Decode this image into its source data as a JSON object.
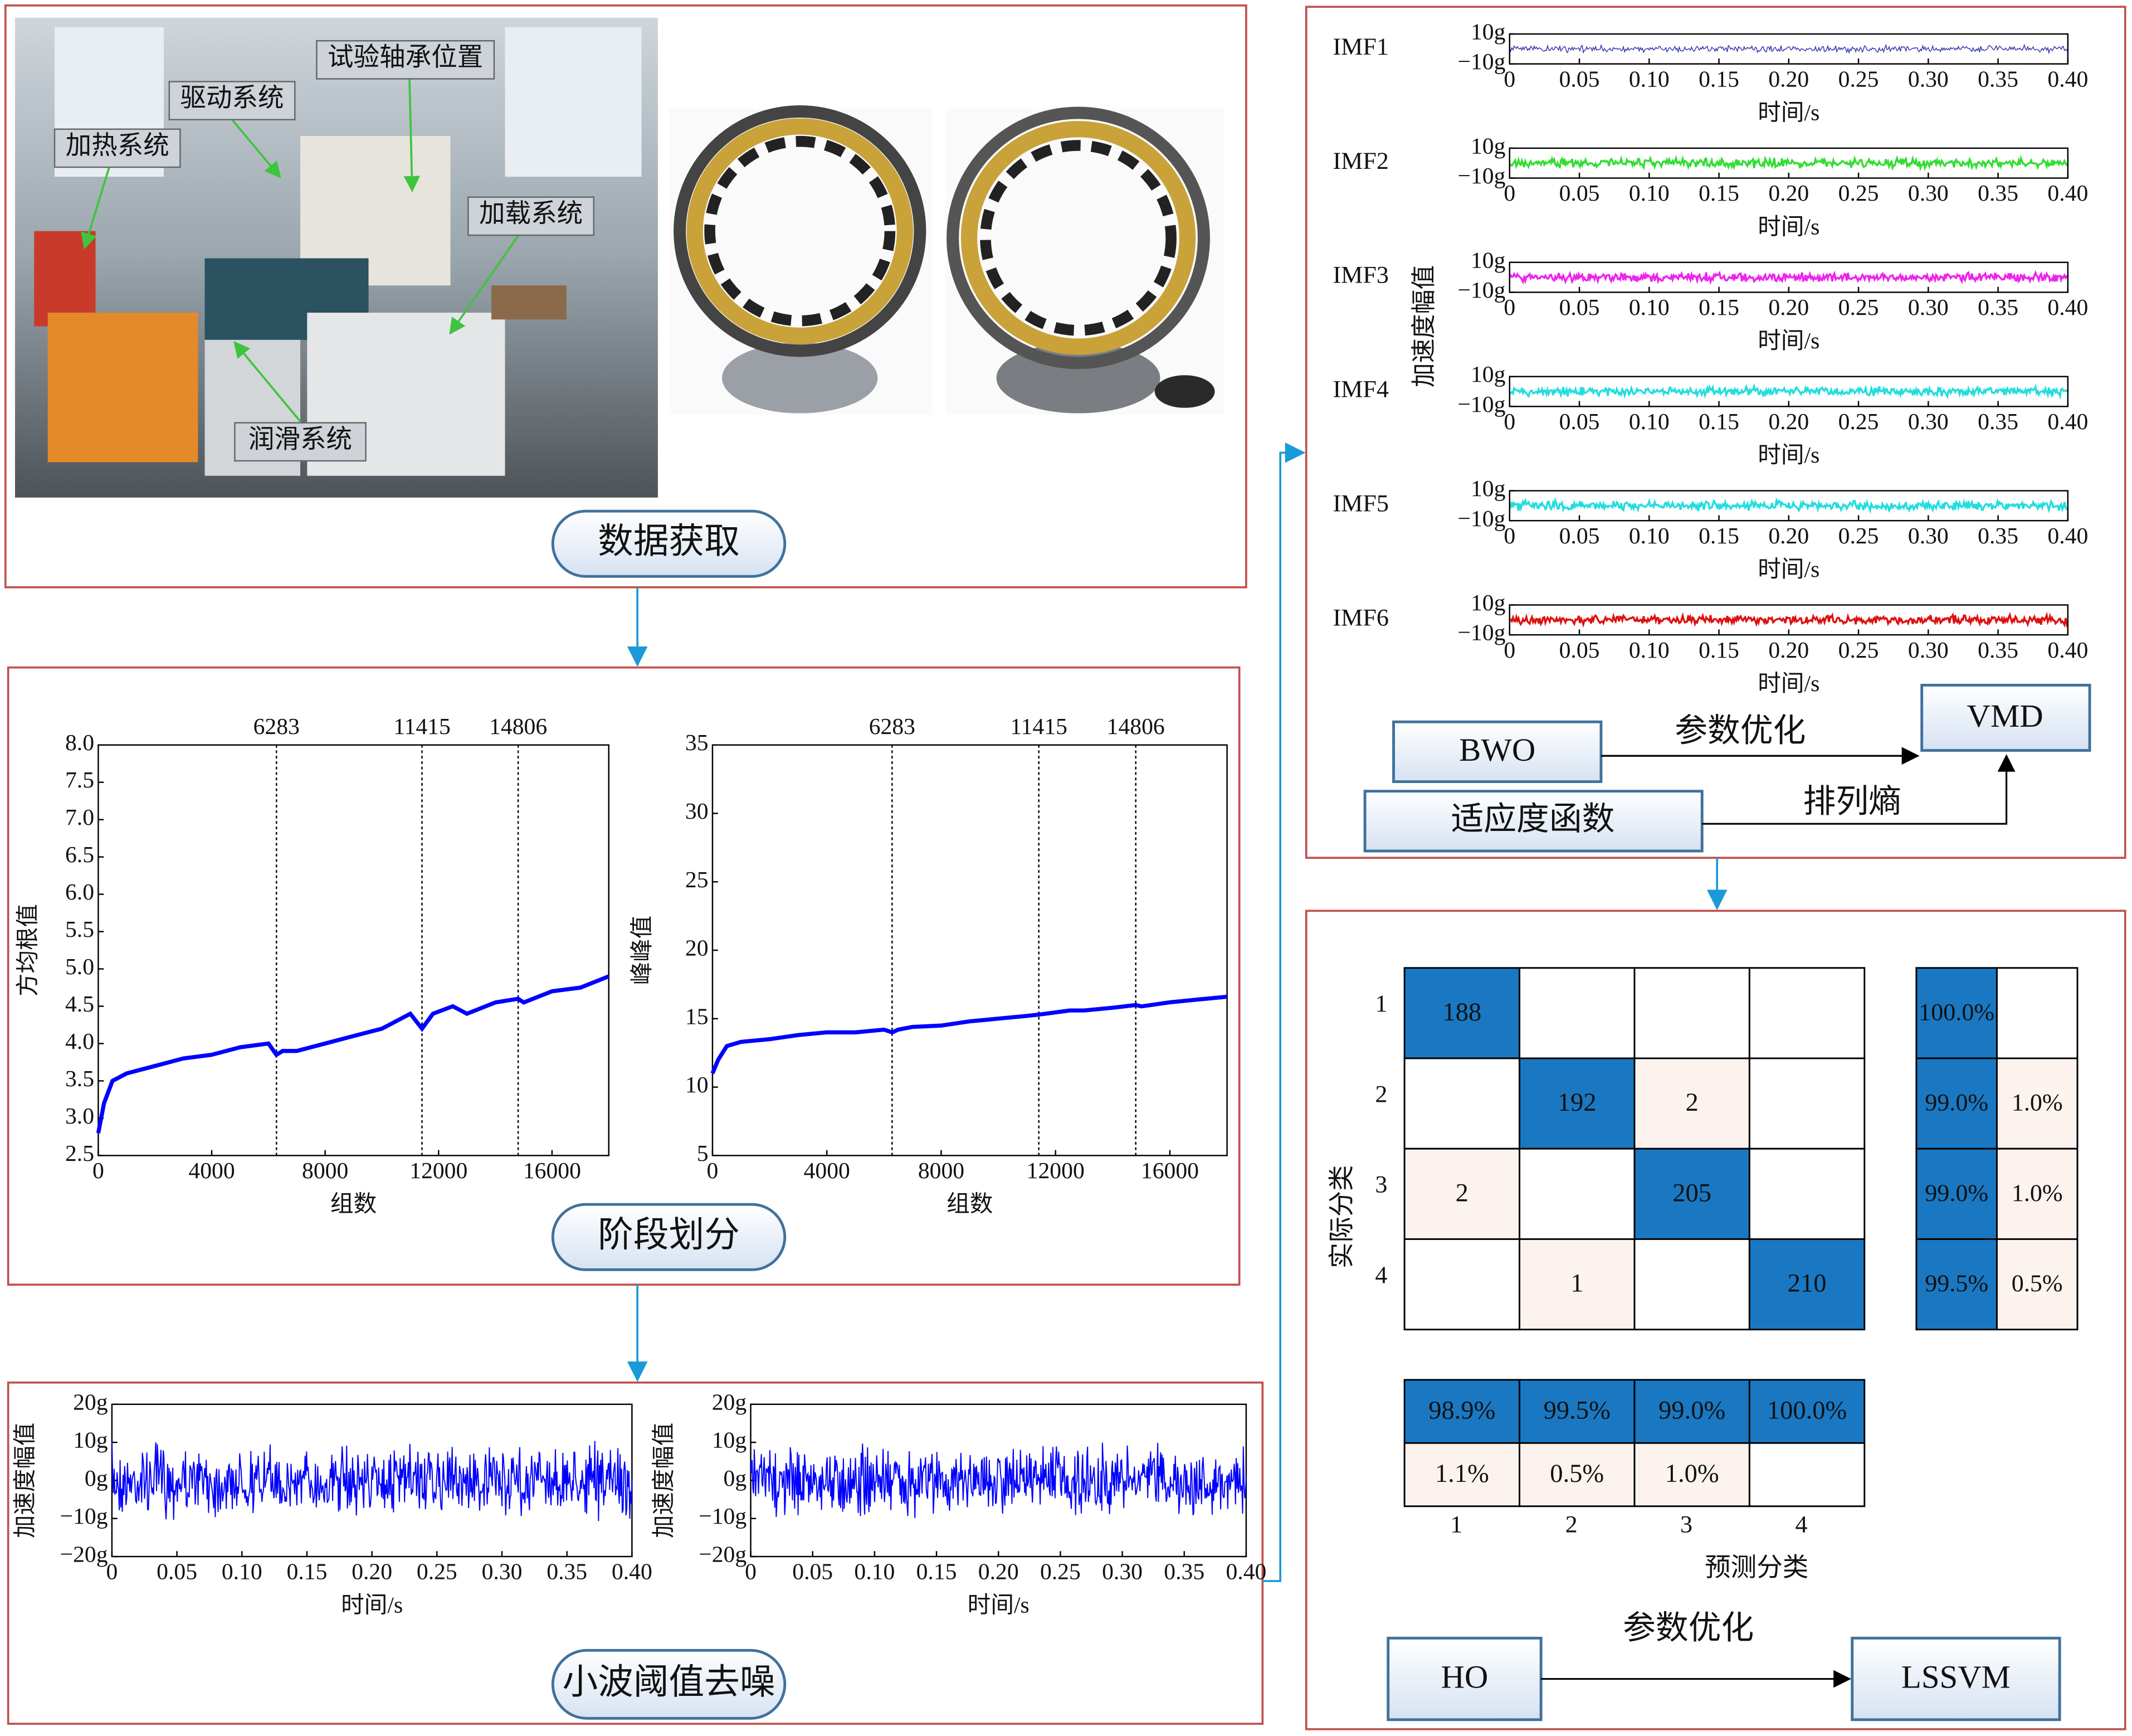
{
  "acquisition": {
    "labels": [
      "试验轴承位置",
      "驱动系统",
      "加热系统",
      "加载系统",
      "润滑系统"
    ],
    "caption": "数据获取"
  },
  "stage": {
    "caption": "阶段划分",
    "charts": [
      {
        "type": "line",
        "xlabel": "组数",
        "ylabel": "方均根值",
        "color": "#0000ff",
        "xlim": [
          0,
          18000
        ],
        "xticks": [
          0,
          4000,
          8000,
          12000,
          16000
        ],
        "ylim": [
          2.5,
          8.0
        ],
        "yticks": [
          2.5,
          {
            "value": 3.0,
            "label": "3.0"
          },
          3.5,
          {
            "value": 4.0,
            "label": "4.0"
          },
          4.5,
          {
            "value": 5.0,
            "label": "5.0"
          },
          5.5,
          {
            "value": 6.0,
            "label": "6.0"
          },
          6.5,
          {
            "value": 7.0,
            "label": "7.0"
          },
          7.5,
          {
            "value": 8.0,
            "label": "8.0"
          }
        ],
        "markers": [
          6283,
          11415,
          14806
        ],
        "x": [
          0,
          200,
          500,
          1000,
          2000,
          3000,
          4000,
          5000,
          6000,
          6283,
          6500,
          7000,
          8000,
          9000,
          10000,
          11000,
          11415,
          11800,
          12500,
          13000,
          14000,
          14806,
          15000,
          16000,
          17000,
          18000
        ],
        "values": [
          2.8,
          3.2,
          3.5,
          3.6,
          3.7,
          3.8,
          3.85,
          3.95,
          4.0,
          3.85,
          3.9,
          3.9,
          4.0,
          4.1,
          4.2,
          4.4,
          4.2,
          4.4,
          4.5,
          4.4,
          4.55,
          4.6,
          4.55,
          4.7,
          4.75,
          4.9
        ]
      },
      {
        "type": "line",
        "xlabel": "组数",
        "ylabel": "峰峰值",
        "color": "#0000ff",
        "xlim": [
          0,
          18000
        ],
        "xticks": [
          0,
          4000,
          8000,
          12000,
          16000
        ],
        "ylim": [
          5,
          35
        ],
        "yticks": [
          5,
          10,
          15,
          20,
          25,
          30,
          35
        ],
        "markers": [
          6283,
          11415,
          14806
        ],
        "x": [
          0,
          200,
          500,
          1000,
          2000,
          3000,
          4000,
          5000,
          6000,
          6283,
          6500,
          7000,
          8000,
          9000,
          10000,
          11000,
          11415,
          11800,
          12500,
          13000,
          14000,
          14806,
          15000,
          16000,
          17000,
          18000
        ],
        "values": [
          11,
          12,
          13,
          13.3,
          13.5,
          13.8,
          14,
          14,
          14.2,
          14,
          14.2,
          14.4,
          14.5,
          14.8,
          15,
          15.2,
          15.3,
          15.4,
          15.6,
          15.6,
          15.8,
          16,
          15.9,
          16.2,
          16.4,
          16.6
        ]
      }
    ]
  },
  "denoise": {
    "caption": "小波阈值去噪",
    "color": "#0000ff",
    "axis": {
      "xlabel": "时间/s",
      "ylabel": "加速度幅值",
      "xlim": [
        0,
        0.4
      ],
      "xticks": [
        0,
        0.05,
        {
          "value": 0.1,
          "label": "0.10"
        },
        0.15,
        {
          "value": 0.2,
          "label": "0.20"
        },
        0.25,
        {
          "value": 0.3,
          "label": "0.30"
        },
        0.35,
        {
          "value": 0.4,
          "label": "0.40"
        }
      ],
      "ylim": [
        -20,
        20
      ],
      "yticks": [
        {
          "value": -20,
          "label": "−20g"
        },
        {
          "value": -10,
          "label": "−10g"
        },
        {
          "value": 0,
          "label": "0g"
        },
        {
          "value": 10,
          "label": "10g"
        },
        {
          "value": 20,
          "label": "20g"
        }
      ]
    }
  },
  "vmd": {
    "axis": {
      "xlabel": "时间/s",
      "ylabel": "加速度幅值",
      "xlim": [
        0,
        0.4
      ],
      "xticks": [
        0,
        0.05,
        {
          "value": 0.1,
          "label": "0.10"
        },
        0.15,
        {
          "value": 0.2,
          "label": "0.20"
        },
        0.25,
        {
          "value": 0.3,
          "label": "0.30"
        },
        0.35,
        {
          "value": 0.4,
          "label": "0.40"
        }
      ],
      "ylim": [
        -10,
        10
      ],
      "yticks": [
        {
          "value": -10,
          "label": "−10g"
        },
        {
          "value": 10,
          "label": "10g"
        }
      ]
    },
    "imfs": [
      {
        "name": "IMF1",
        "color": "#3333aa"
      },
      {
        "name": "IMF2",
        "color": "#33dd33"
      },
      {
        "name": "IMF3",
        "color": "#ee22ee"
      },
      {
        "name": "IMF4",
        "color": "#22dddd"
      },
      {
        "name": "IMF5",
        "color": "#22dddd"
      },
      {
        "name": "IMF6",
        "color": "#dd1111"
      }
    ],
    "boxes": {
      "bwo": "BWO",
      "vmd": "VMD",
      "fitness": "适应度函数"
    },
    "edges": {
      "optimize": "参数优化",
      "entropy": "排列熵"
    }
  },
  "classify": {
    "row_labels": [
      "1",
      "2",
      "3",
      "4"
    ],
    "col_labels": [
      "1",
      "2",
      "3",
      "4"
    ],
    "xlabel": "预测分类",
    "ylabel": "实际分类",
    "matrix": [
      [
        188,
        null,
        null,
        null
      ],
      [
        null,
        192,
        2,
        null
      ],
      [
        2,
        null,
        205,
        null
      ],
      [
        null,
        1,
        null,
        210
      ]
    ],
    "row_rates": {
      "values": [
        [
          100.0,
          null
        ],
        [
          99.0,
          1.0
        ],
        [
          99.0,
          1.0
        ],
        [
          99.5,
          0.5
        ]
      ],
      "value_labels": [
        [
          "100.0%",
          null
        ],
        [
          "99.0%",
          "1.0%"
        ],
        [
          "99.0%",
          "1.0%"
        ],
        [
          "99.5%",
          "0.5%"
        ]
      ]
    },
    "col_rates": {
      "values": [
        [
          98.9,
          99.5,
          99.0,
          100.0
        ],
        [
          1.1,
          0.5,
          1.0,
          null
        ]
      ],
      "value_labels": [
        [
          "98.9%",
          "99.5%",
          "99.0%",
          "100.0%"
        ],
        [
          "1.1%",
          "0.5%",
          "1.0%",
          null
        ]
      ]
    },
    "boxes": {
      "ho": "HO",
      "lssvm": "LSSVM"
    },
    "edge": "参数优化"
  }
}
